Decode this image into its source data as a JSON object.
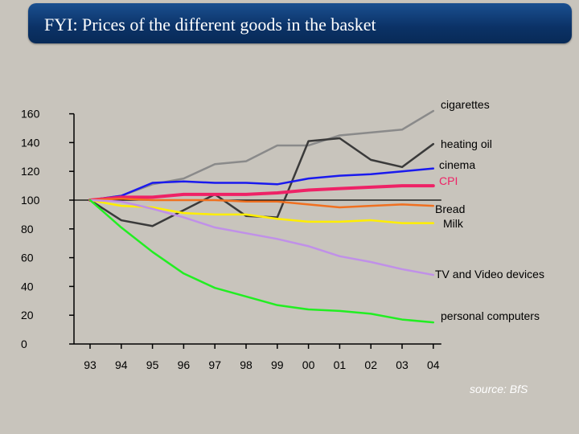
{
  "header": {
    "title": "FYI: Prices of the different goods in the basket"
  },
  "source": "source: BfS",
  "chart_data": {
    "type": "line",
    "title": "FYI: Prices of the different goods in the basket",
    "xlabel": "",
    "ylabel": "",
    "x": [
      "93",
      "94",
      "95",
      "96",
      "97",
      "98",
      "99",
      "00",
      "01",
      "02",
      "03",
      "04"
    ],
    "ylim": [
      0,
      160
    ],
    "yticks": [
      0,
      20,
      40,
      60,
      80,
      100,
      120,
      140,
      160
    ],
    "grid": false,
    "series": [
      {
        "name": "cigarettes",
        "color": "#8a8a8a",
        "values": [
          100,
          103,
          111,
          115,
          125,
          127,
          138,
          138,
          145,
          147,
          149,
          162
        ]
      },
      {
        "name": "heating oil",
        "color": "#3a3a3a",
        "values": [
          100,
          86,
          82,
          93,
          104,
          89,
          88,
          141,
          143,
          128,
          123,
          139
        ]
      },
      {
        "name": "cinema",
        "color": "#1a1aee",
        "values": [
          100,
          103,
          112,
          113,
          112,
          112,
          111,
          115,
          117,
          118,
          120,
          122
        ]
      },
      {
        "name": "CPI",
        "color": "#ee2266",
        "values": [
          100,
          102,
          102,
          104,
          104,
          104,
          105,
          107,
          108,
          109,
          110,
          110
        ]
      },
      {
        "name": "Bread",
        "color": "#f07020",
        "values": [
          100,
          101,
          100,
          100,
          100,
          99,
          99,
          97,
          95,
          96,
          97,
          96
        ]
      },
      {
        "name": "Milk",
        "color": "#ffee00",
        "values": [
          100,
          96,
          95,
          91,
          90,
          90,
          87,
          85,
          85,
          86,
          84,
          84
        ]
      },
      {
        "name": "TV and Video devices",
        "color": "#c090e8",
        "values": [
          100,
          99,
          94,
          88,
          81,
          77,
          73,
          68,
          61,
          57,
          52,
          48
        ]
      },
      {
        "name": "personal computers",
        "color": "#22ee22",
        "values": [
          100,
          81,
          64,
          49,
          39,
          33,
          27,
          24,
          23,
          21,
          17,
          15
        ]
      }
    ]
  }
}
